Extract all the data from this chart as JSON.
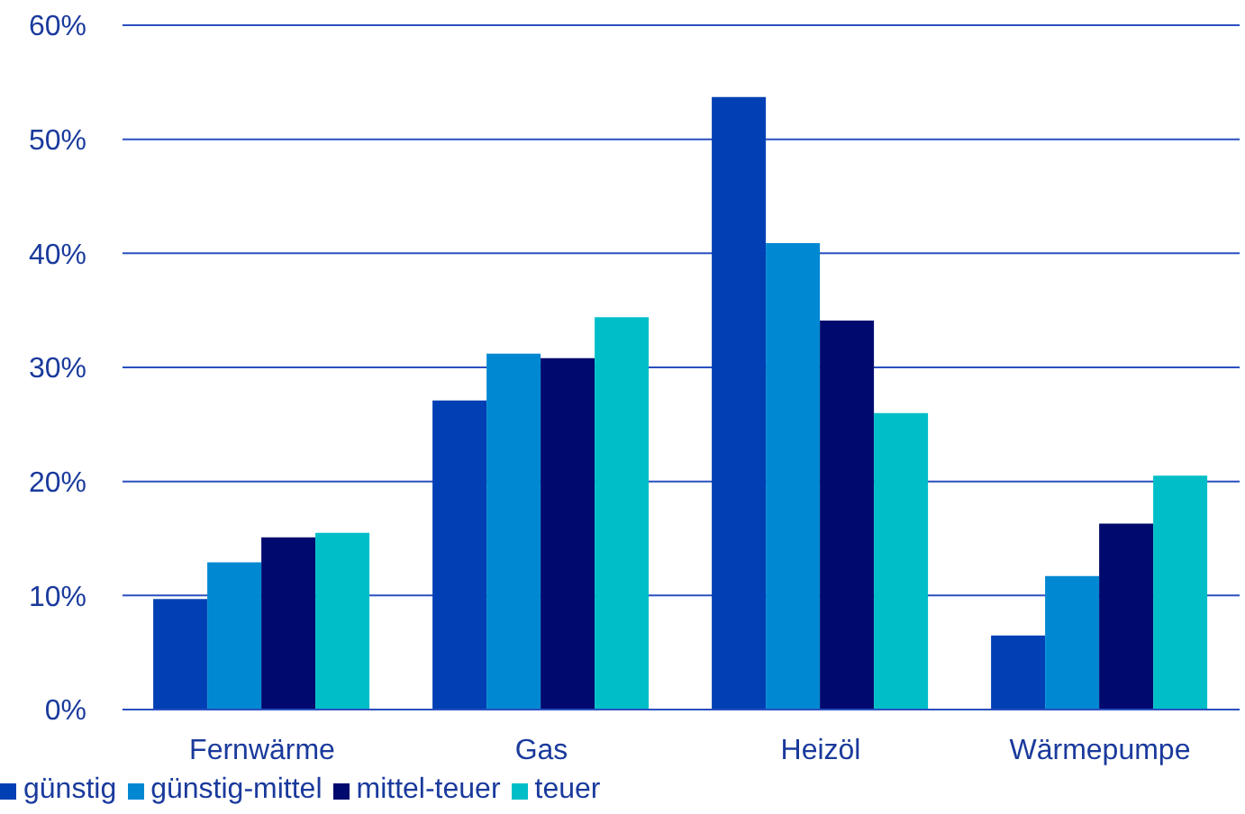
{
  "chart_data": {
    "type": "bar",
    "categories": [
      "Fernwärme",
      "Gas",
      "Heizöl",
      "Wärmepumpe"
    ],
    "series": [
      {
        "name": "günstig",
        "color": "#0040b4",
        "values": [
          9.7,
          27.1,
          53.7,
          6.5
        ]
      },
      {
        "name": "günstig-mittel",
        "color": "#0088d2",
        "values": [
          12.9,
          31.2,
          40.9,
          11.7
        ]
      },
      {
        "name": "mittel-teuer",
        "color": "#000a6e",
        "values": [
          15.1,
          30.8,
          34.1,
          16.3
        ]
      },
      {
        "name": "teuer",
        "color": "#00bec8",
        "values": [
          15.5,
          34.4,
          26.0,
          20.5
        ]
      }
    ],
    "ylim": [
      0,
      60
    ],
    "yticks": [
      {
        "value": 0,
        "label": "0%"
      },
      {
        "value": 10,
        "label": "10%"
      },
      {
        "value": 20,
        "label": "20%"
      },
      {
        "value": 30,
        "label": "30%"
      },
      {
        "value": 40,
        "label": "40%"
      },
      {
        "value": 50,
        "label": "50%"
      },
      {
        "value": 60,
        "label": "60%"
      }
    ],
    "grid": "y",
    "legend": "bottom left"
  }
}
